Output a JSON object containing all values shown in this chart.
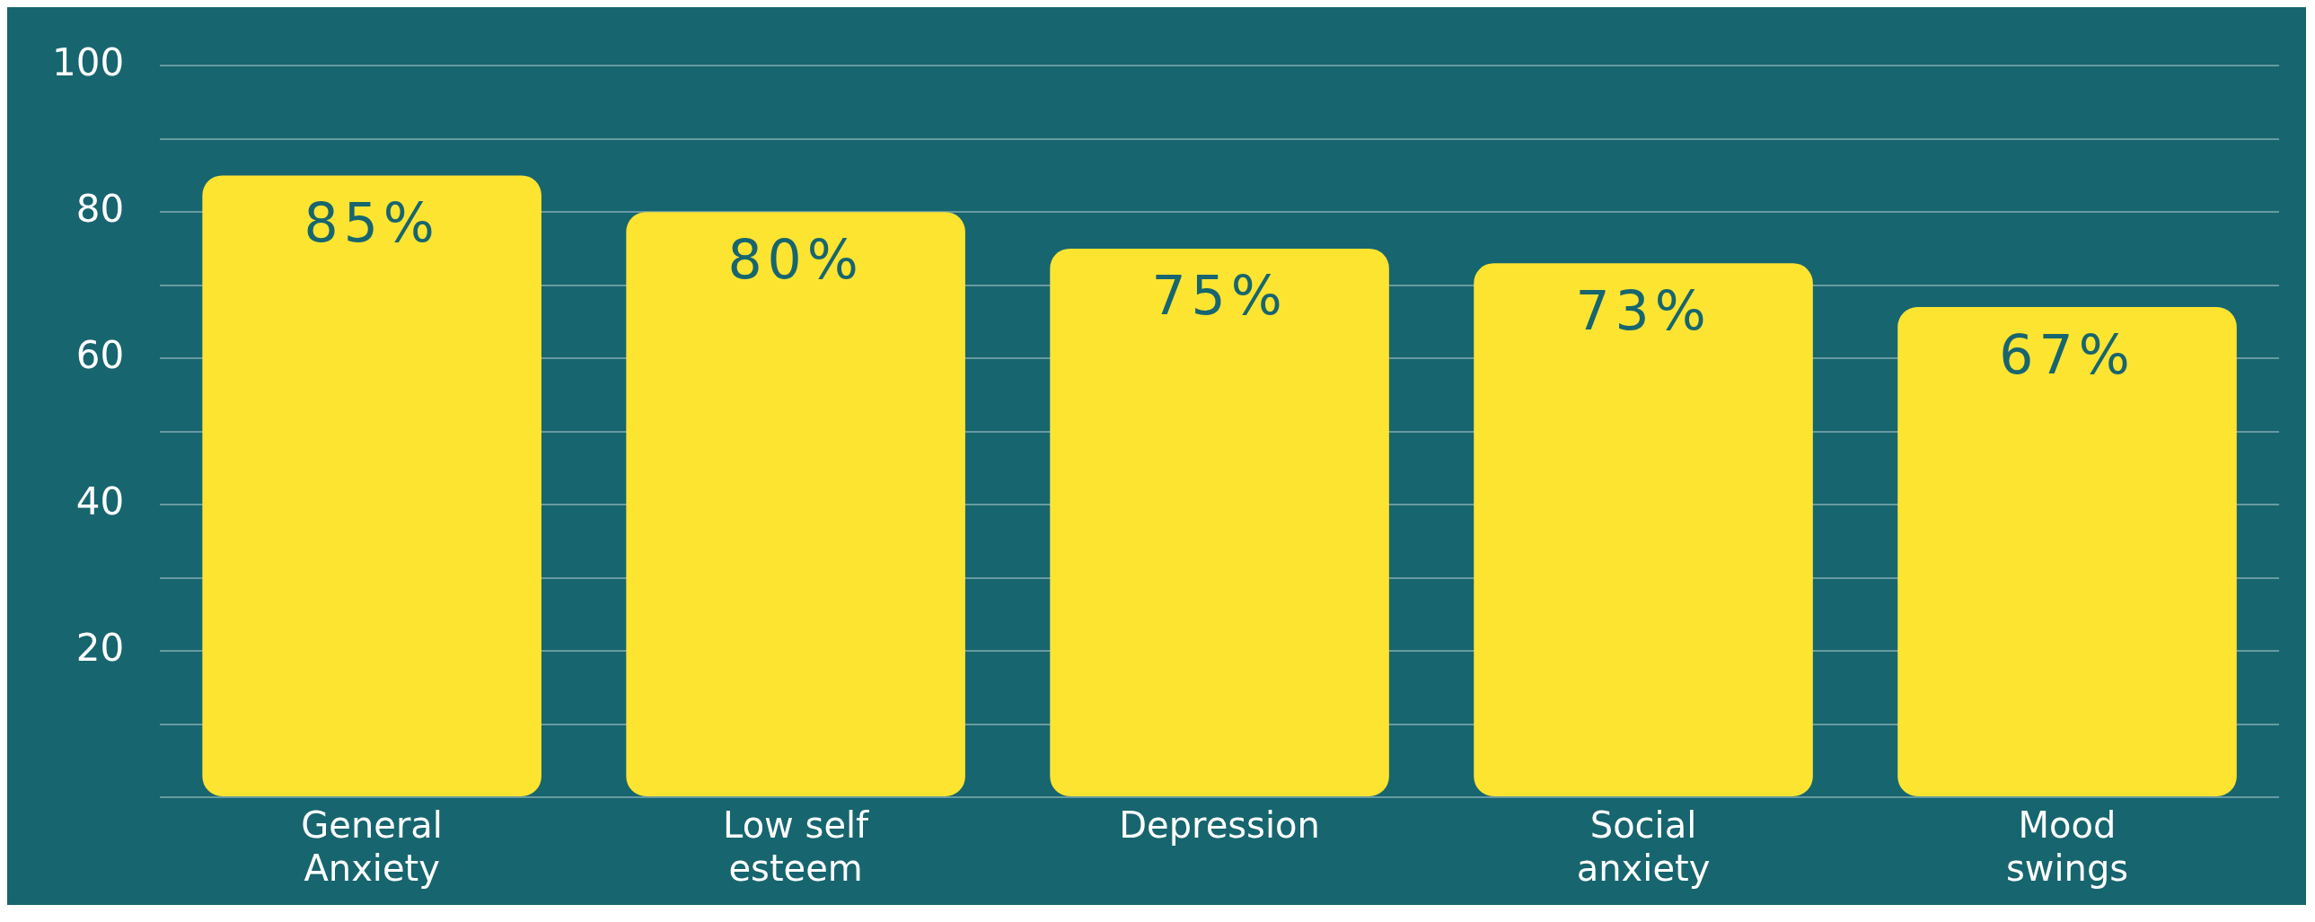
{
  "chart_data": {
    "type": "bar",
    "categories": [
      "General Anxiety",
      "Low self esteem",
      "Depression",
      "Social anxiety",
      "Mood swings"
    ],
    "values": [
      85,
      80,
      75,
      73,
      67
    ],
    "color": "#fde431",
    "ylim": [
      0,
      100
    ],
    "yticks": [
      {
        "value": 0,
        "label": null
      },
      {
        "value": 10,
        "label": null
      },
      20,
      {
        "value": 30,
        "label": null
      },
      40,
      {
        "value": 50,
        "label": null
      },
      60,
      {
        "value": 70,
        "label": null
      },
      80,
      {
        "value": 90,
        "label": null
      },
      100
    ],
    "value_labels": [
      "85%",
      "80%",
      "75%",
      "73%",
      "67%"
    ],
    "grid": "y"
  }
}
